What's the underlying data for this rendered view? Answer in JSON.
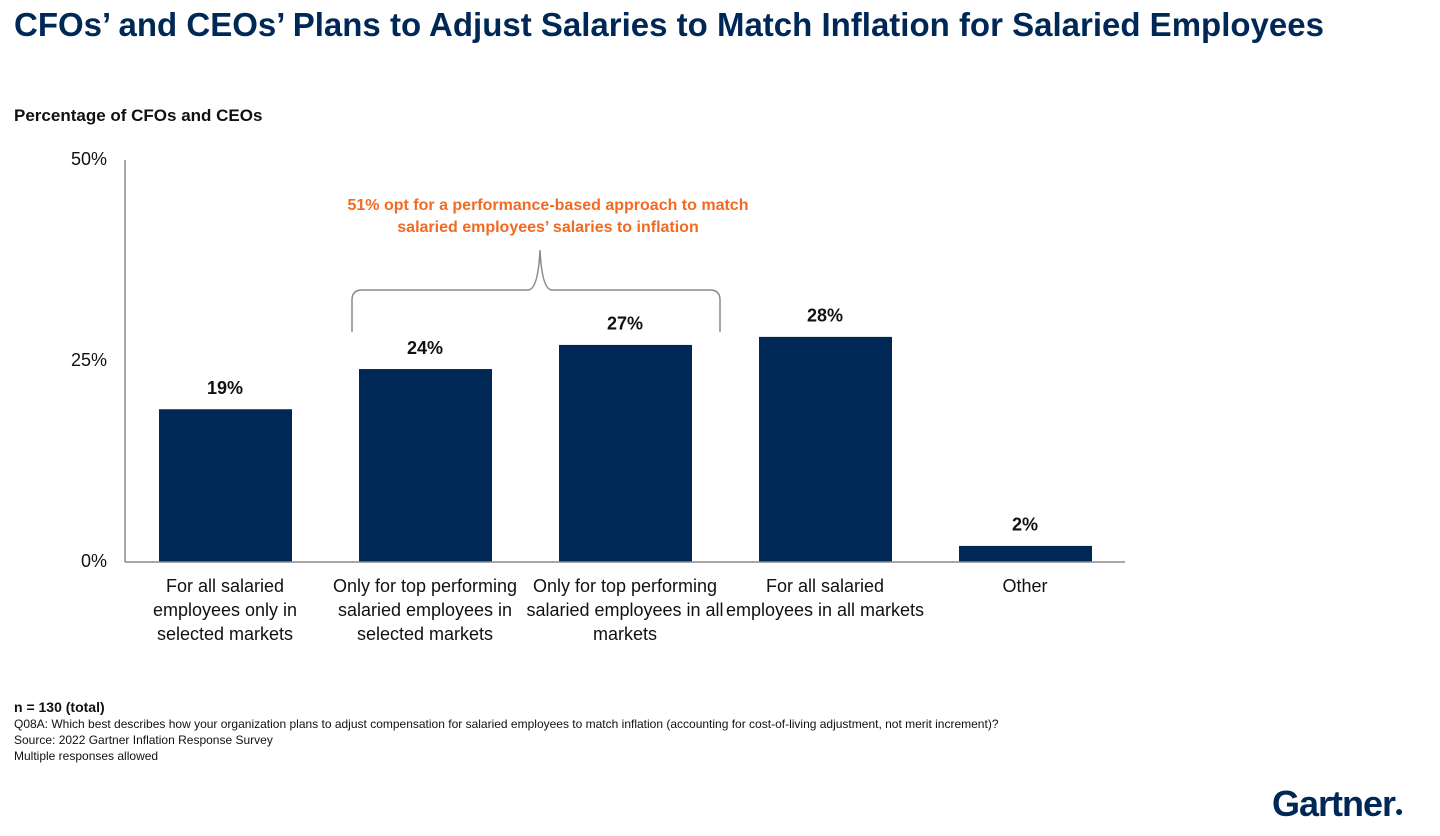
{
  "chart_data": {
    "type": "bar",
    "title": "CFOs’ and CEOs’ Plans to Adjust Salaries to Match Inflation for Salaried Employees",
    "subtitle": "Percentage of CFOs and CEOs",
    "categories": [
      "For all salaried employees only in selected markets",
      "Only for top performing salaried employees in selected markets",
      "Only for top performing salaried employees in all markets",
      "For all salaried employees in all markets",
      "Other"
    ],
    "values": [
      19,
      24,
      27,
      28,
      2
    ],
    "value_labels": [
      "19%",
      "24%",
      "27%",
      "28%",
      "2%"
    ],
    "color": "#002856",
    "ylim": [
      0,
      50
    ],
    "yticks": [
      {
        "value": 0,
        "label": "0%"
      },
      {
        "value": 25,
        "label": "25%"
      },
      {
        "value": 50,
        "label": "50%"
      }
    ],
    "grid": false,
    "annotation": "51% opt for a performance-based approach to match salaried employees’ salaries to inflation",
    "footnotes": [
      "n = 130 (total)",
      "Q08A: Which best describes how your organization plans to adjust compensation for salaried employees to match inflation (accounting for cost-of-living adjustment, not merit increment)?",
      "Source: 2022 Gartner Inflation Response Survey",
      "Multiple responses allowed"
    ]
  },
  "logo": "Gartner"
}
